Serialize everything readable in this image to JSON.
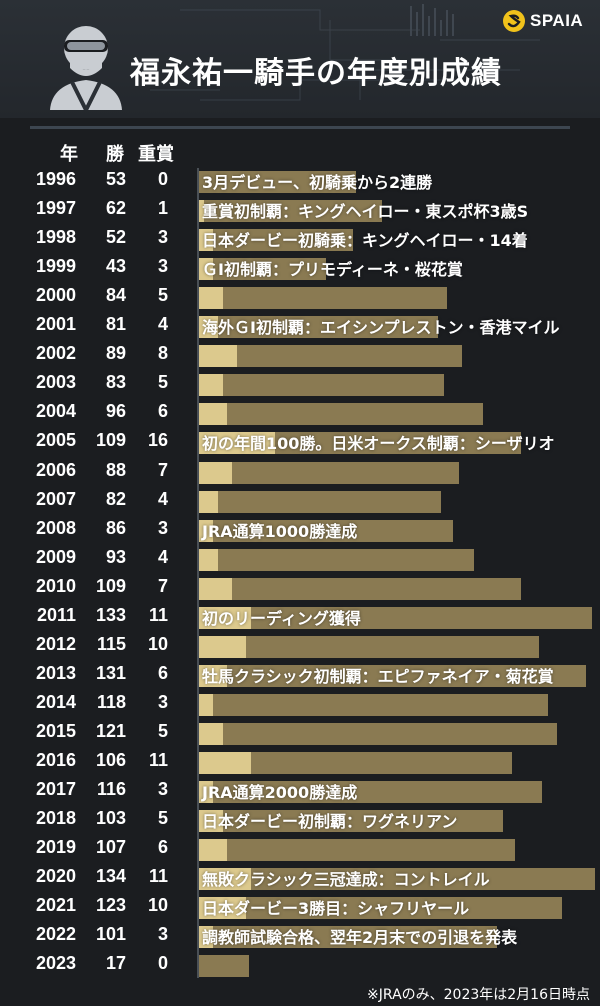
{
  "header": {
    "title": "福永祐一騎手の年度別成績",
    "logo_text": "SPAIA",
    "icons": [
      "jockey-icon",
      "spaia-logo-icon"
    ]
  },
  "columns": {
    "year": "年",
    "wins": "勝",
    "grade": "重賞"
  },
  "colors": {
    "total_bar": "#8a7a52",
    "grade_bar": "#dcc98d",
    "background": "#1b1d20"
  },
  "footnote": "※JRAのみ、2023年は2月16日時点",
  "chart_data": {
    "type": "bar",
    "orientation": "horizontal",
    "categories": [
      "1996",
      "1997",
      "1998",
      "1999",
      "2000",
      "2001",
      "2002",
      "2003",
      "2004",
      "2005",
      "2006",
      "2007",
      "2008",
      "2009",
      "2010",
      "2011",
      "2012",
      "2013",
      "2014",
      "2015",
      "2016",
      "2017",
      "2018",
      "2019",
      "2020",
      "2021",
      "2022",
      "2023"
    ],
    "series": [
      {
        "name": "勝",
        "values": [
          53,
          62,
          52,
          43,
          84,
          81,
          89,
          83,
          96,
          109,
          88,
          82,
          86,
          93,
          109,
          133,
          115,
          131,
          118,
          121,
          106,
          116,
          103,
          107,
          134,
          123,
          101,
          17
        ]
      },
      {
        "name": "重賞",
        "values": [
          0,
          1,
          3,
          3,
          5,
          4,
          8,
          5,
          6,
          16,
          7,
          4,
          3,
          4,
          7,
          11,
          10,
          6,
          3,
          5,
          11,
          3,
          5,
          6,
          11,
          10,
          3,
          0
        ]
      }
    ],
    "annotations": [
      "3月デビュー、初騎乗から2連勝",
      "重賞初制覇：キングヘイロー・東スポ杯3歳S",
      "日本ダービー初騎乗：キングヘイロー・14着",
      "ＧⅠ初制覇：プリモディーネ・桜花賞",
      "",
      "海外ＧⅠ初制覇：エイシンプレストン・香港マイル",
      "",
      "",
      "",
      "初の年間100勝。日米オークス制覇：シーザリオ",
      "",
      "",
      "JRA通算1000勝達成",
      "",
      "",
      "初のリーディング獲得",
      "",
      "牡馬クラシック初制覇：エピファネイア・菊花賞",
      "",
      "",
      "",
      "JRA通算2000勝達成",
      "日本ダービー初制覇：ワグネリアン",
      "",
      "無敗クラシック三冠達成：コントレイル",
      "日本ダービー3勝目：シャフリヤール",
      "調教師試験合格、翌年2月末での引退を発表",
      ""
    ],
    "xlim": [
      0,
      134
    ]
  }
}
